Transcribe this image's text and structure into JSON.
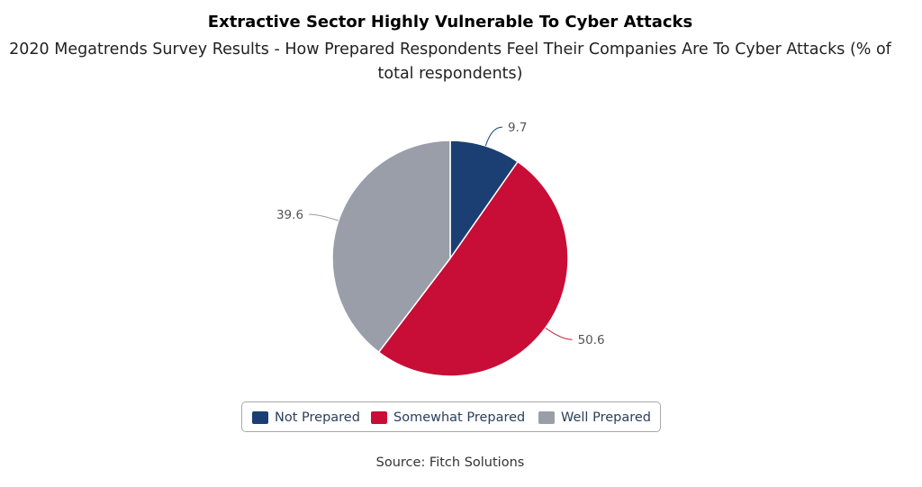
{
  "chart_data": {
    "type": "pie",
    "title": "Extractive Sector Highly Vulnerable To Cyber Attacks",
    "subtitle": "2020 Megatrends Survey Results - How Prepared Respondents Feel Their Companies Are To Cyber Attacks (% of total respondents)",
    "slices": [
      {
        "label": "Not Prepared",
        "value": 9.7,
        "value_label": "9.7",
        "color": "#1b3f72"
      },
      {
        "label": "Somewhat Prepared",
        "value": 50.6,
        "value_label": "50.6",
        "color": "#c80d37"
      },
      {
        "label": "Well Prepared",
        "value": 39.6,
        "value_label": "39.6",
        "color": "#999ea8"
      }
    ],
    "legend_placement": "bottom",
    "source": "Source: Fitch Solutions"
  }
}
